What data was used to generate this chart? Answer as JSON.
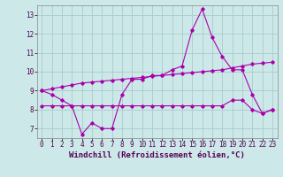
{
  "xlabel": "Windchill (Refroidissement éolien,°C)",
  "hours": [
    0,
    1,
    2,
    3,
    4,
    5,
    6,
    7,
    8,
    9,
    10,
    11,
    12,
    13,
    14,
    15,
    16,
    17,
    18,
    19,
    20,
    21,
    22,
    23
  ],
  "main_y": [
    9.0,
    8.8,
    8.5,
    8.2,
    6.7,
    7.3,
    7.0,
    7.0,
    8.8,
    9.6,
    9.6,
    9.8,
    9.8,
    10.1,
    10.3,
    12.2,
    13.3,
    11.8,
    10.8,
    10.1,
    10.1,
    8.8,
    7.8,
    8.0
  ],
  "upper_y": [
    9.0,
    9.1,
    9.2,
    9.3,
    9.4,
    9.45,
    9.5,
    9.55,
    9.6,
    9.65,
    9.7,
    9.75,
    9.8,
    9.85,
    9.9,
    9.95,
    10.0,
    10.05,
    10.1,
    10.2,
    10.3,
    10.4,
    10.45,
    10.5
  ],
  "lower_y": [
    8.2,
    8.2,
    8.2,
    8.2,
    8.2,
    8.2,
    8.2,
    8.2,
    8.2,
    8.2,
    8.2,
    8.2,
    8.2,
    8.2,
    8.2,
    8.2,
    8.2,
    8.2,
    8.2,
    8.5,
    8.5,
    8.0,
    7.8,
    8.0
  ],
  "ylim": [
    6.5,
    13.5
  ],
  "xlim": [
    -0.5,
    23.5
  ],
  "bg_color": "#cce8e8",
  "grid_color": "#aacccc",
  "line_color": "#aa00aa",
  "tick_fontsize": 5.5,
  "xlabel_fontsize": 6.5
}
